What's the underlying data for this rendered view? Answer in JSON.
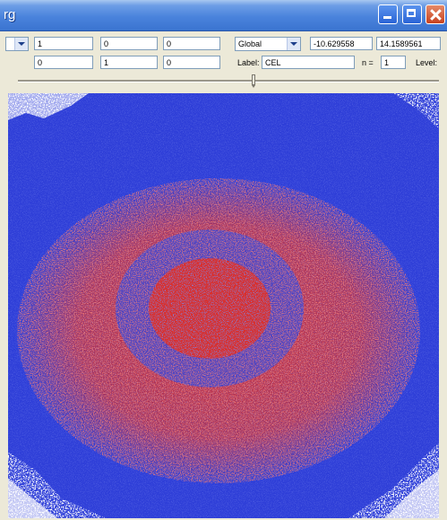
{
  "window": {
    "title": "rg",
    "buttons": {
      "minimize": "minimize-icon",
      "maximize": "maximize-icon",
      "close": "close-icon"
    }
  },
  "toolbar": {
    "row1": {
      "field_a": "1",
      "field_b": "0",
      "field_c": "0",
      "space_select": "Global",
      "coord_x": "-10.629558",
      "coord_y": "14.1589561"
    },
    "row2": {
      "field_a": "0",
      "field_b": "1",
      "field_c": "0",
      "label_caption": "Label:",
      "label_value": "CEL",
      "n_caption": "n =",
      "n_value": "1",
      "level_caption": "Level:"
    },
    "slider": {
      "value_fraction": 0.56
    }
  },
  "colors": {
    "background_blue": "#2f3fd8",
    "cluster_red": "#d8302e",
    "noise_white": "#ffffff",
    "titlebar": "#4a83dc"
  }
}
